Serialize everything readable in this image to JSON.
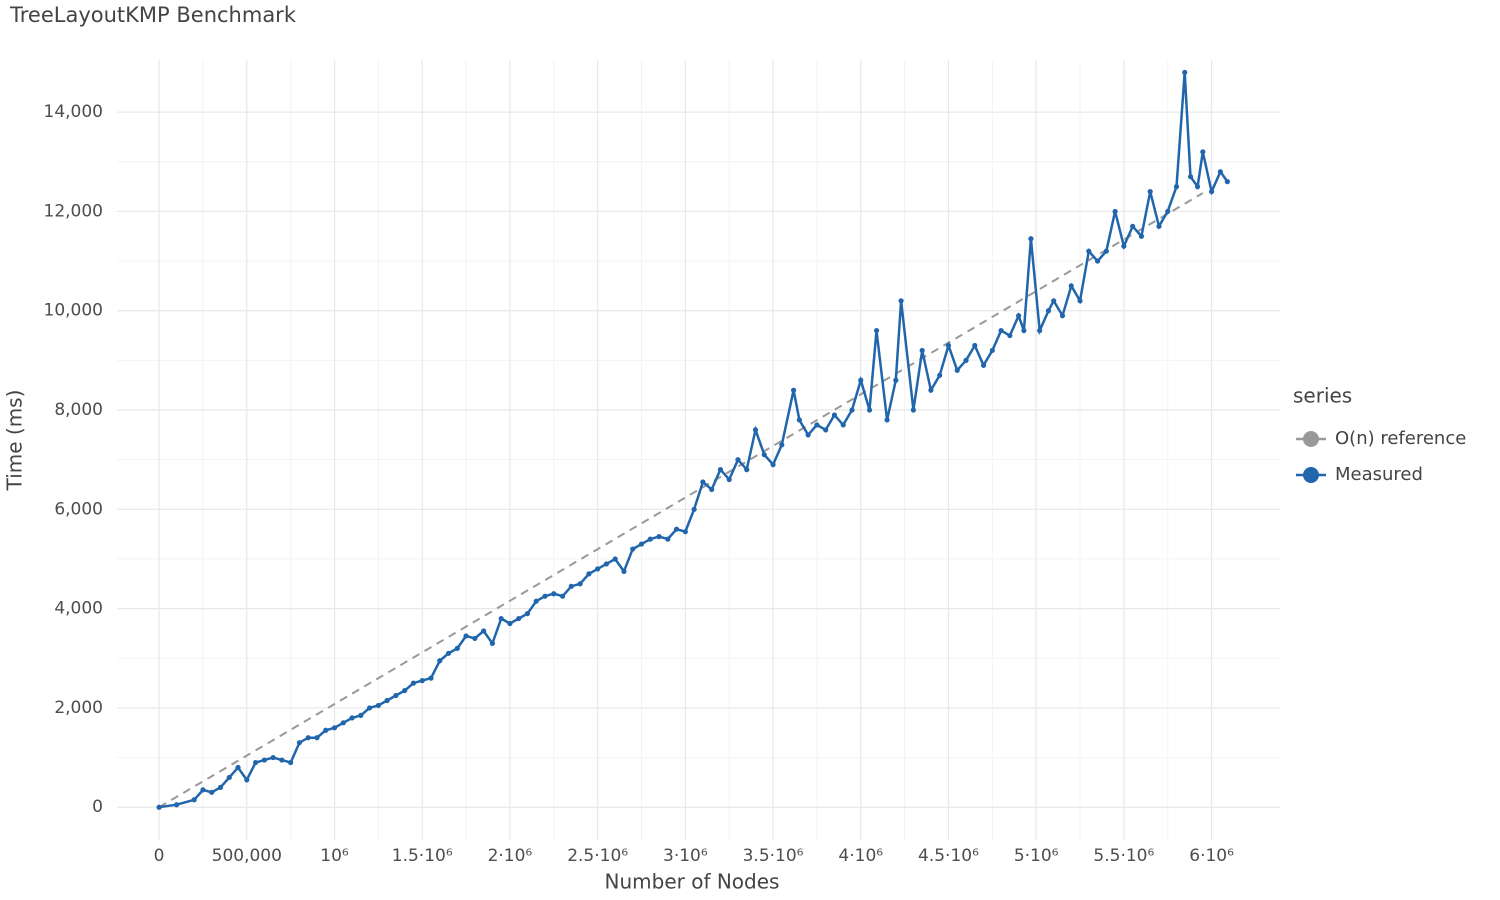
{
  "chart_data": {
    "type": "line",
    "title": "TreeLayoutKMP Benchmark",
    "x_label": "Number of Nodes",
    "y_label": "Time (ms)",
    "legend_title": "series",
    "legend_position": "right",
    "grid": true,
    "xlim": [
      -240000,
      6390000
    ],
    "ylim": [
      -660,
      15050
    ],
    "xticks": [
      0,
      {
        "value": 500000,
        "label": "500,000"
      },
      {
        "value": 1000000,
        "label": "10⁶"
      },
      {
        "value": 1500000,
        "label": "1.5·10⁶"
      },
      {
        "value": 2000000,
        "label": "2·10⁶"
      },
      {
        "value": 2500000,
        "label": "2.5·10⁶"
      },
      {
        "value": 3000000,
        "label": "3·10⁶"
      },
      {
        "value": 3500000,
        "label": "3.5·10⁶"
      },
      {
        "value": 4000000,
        "label": "4·10⁶"
      },
      {
        "value": 4500000,
        "label": "4.5·10⁶"
      },
      {
        "value": 5000000,
        "label": "5·10⁶"
      },
      {
        "value": 5500000,
        "label": "5.5·10⁶"
      },
      {
        "value": 6000000,
        "label": "6·10⁶"
      }
    ],
    "yticks": [
      0,
      {
        "value": 2000,
        "label": "2,000"
      },
      {
        "value": 4000,
        "label": "4,000"
      },
      {
        "value": 6000,
        "label": "6,000"
      },
      {
        "value": 8000,
        "label": "8,000"
      },
      {
        "value": 10000,
        "label": "10,000"
      },
      {
        "value": 12000,
        "label": "12,000"
      },
      {
        "value": 14000,
        "label": "14,000"
      }
    ],
    "series": [
      {
        "name": "O(n) reference",
        "color": "#999999",
        "dashed": true,
        "markers": false,
        "x": [
          0,
          5950000
        ],
        "values": [
          0,
          12370
        ]
      },
      {
        "name": "Measured",
        "color": "#2166ac",
        "dashed": false,
        "markers": true,
        "x": [
          0,
          100000,
          200000,
          250000,
          300000,
          350000,
          400000,
          450000,
          500000,
          550000,
          600000,
          650000,
          700000,
          750000,
          800000,
          850000,
          900000,
          950000,
          1000000,
          1050000,
          1100000,
          1150000,
          1200000,
          1250000,
          1300000,
          1350000,
          1400000,
          1450000,
          1500000,
          1550000,
          1600000,
          1650000,
          1700000,
          1750000,
          1800000,
          1850000,
          1900000,
          1950000,
          2000000,
          2050000,
          2100000,
          2150000,
          2200000,
          2250000,
          2300000,
          2350000,
          2400000,
          2450000,
          2500000,
          2550000,
          2600000,
          2650000,
          2700000,
          2750000,
          2800000,
          2850000,
          2900000,
          2950000,
          3000000,
          3050000,
          3100000,
          3150000,
          3200000,
          3250000,
          3300000,
          3350000,
          3400000,
          3450000,
          3500000,
          3550000,
          3617000,
          3650000,
          3700000,
          3750000,
          3800000,
          3850000,
          3900000,
          3950000,
          4000000,
          4050000,
          4090000,
          4150000,
          4200000,
          4230000,
          4300000,
          4350000,
          4400000,
          4450000,
          4500000,
          4550000,
          4600000,
          4650000,
          4700000,
          4750000,
          4800000,
          4850000,
          4900000,
          4930000,
          4970000,
          5020000,
          5070000,
          5100000,
          5150000,
          5200000,
          5250000,
          5300000,
          5350000,
          5400000,
          5450000,
          5500000,
          5550000,
          5600000,
          5650000,
          5700000,
          5750000,
          5800000,
          5847000,
          5880000,
          5920000,
          5950000,
          6000000,
          6050000,
          6090000
        ],
        "values": [
          0,
          50,
          150,
          350,
          300,
          400,
          600,
          800,
          550,
          900,
          950,
          1000,
          950,
          900,
          1300,
          1400,
          1400,
          1550,
          1600,
          1700,
          1800,
          1850,
          2000,
          2050,
          2150,
          2250,
          2350,
          2500,
          2550,
          2600,
          2950,
          3100,
          3200,
          3450,
          3400,
          3550,
          3300,
          3800,
          3700,
          3800,
          3900,
          4150,
          4250,
          4300,
          4250,
          4450,
          4500,
          4700,
          4800,
          4900,
          5000,
          4750,
          5200,
          5300,
          5400,
          5450,
          5400,
          5600,
          5550,
          6000,
          6550,
          6400,
          6800,
          6600,
          7000,
          6800,
          7600,
          7100,
          6900,
          7300,
          8400,
          7800,
          7500,
          7700,
          7600,
          7900,
          7700,
          8000,
          8600,
          8000,
          9600,
          7800,
          8600,
          10200,
          8000,
          9200,
          8400,
          8700,
          9300,
          8800,
          9000,
          9300,
          8900,
          9200,
          9600,
          9500,
          9900,
          9600,
          11450,
          9600,
          10000,
          10200,
          9900,
          10500,
          10200,
          11200,
          11000,
          11200,
          12000,
          11300,
          11700,
          11500,
          12400,
          11700,
          12000,
          12500,
          14800,
          12700,
          12500,
          13200,
          12400,
          12800,
          12600
        ]
      }
    ]
  }
}
